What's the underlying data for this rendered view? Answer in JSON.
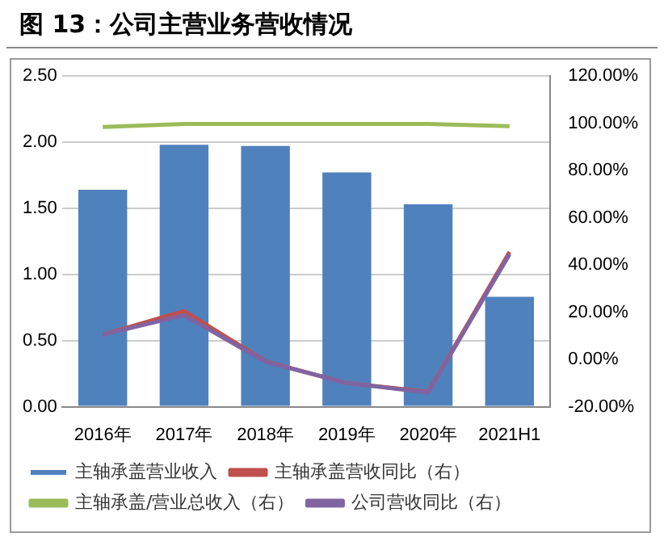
{
  "chart_data": {
    "type": "bar",
    "title": "图 13：公司主营业务营收情况",
    "categories": [
      "2016年",
      "2017年",
      "2018年",
      "2019年",
      "2020年",
      "2021H1"
    ],
    "series": [
      {
        "name": "主轴承盖营业收入",
        "color": "#4f81bd",
        "values": [
          1.64,
          1.98,
          1.97,
          1.77,
          1.53,
          0.83
        ]
      },
      {
        "name": "主轴承盖营收同比（右）",
        "type": "line",
        "axis": "y2",
        "color": "#c0504d",
        "values": [
          10.5,
          20.5,
          -0.8,
          -10,
          -13.7,
          45.5
        ]
      },
      {
        "name": "主轴承盖/营业总收入（右）",
        "type": "line",
        "axis": "y2",
        "color": "#9bbb59",
        "values": [
          98.4,
          99.7,
          99.7,
          99.7,
          99.7,
          98.7
        ]
      },
      {
        "name": "公司营收同比（右）",
        "type": "line",
        "axis": "y2",
        "color": "#8064a2",
        "values": [
          10.5,
          18.7,
          -1,
          -10,
          -14,
          44.5
        ]
      }
    ],
    "ylim": [
      0,
      2.5
    ],
    "yticks": [
      {
        "value": 0,
        "label": "0.00"
      },
      {
        "value": 0.5,
        "label": "0.50"
      },
      {
        "value": 1,
        "label": "1.00"
      },
      {
        "value": 1.5,
        "label": "1.50"
      },
      {
        "value": 2,
        "label": "2.00"
      },
      {
        "value": 2.5,
        "label": "2.50"
      }
    ],
    "y2lim": [
      -20,
      120
    ],
    "y2ticks": [
      {
        "value": -20,
        "label": "-20.00%"
      },
      {
        "value": 0,
        "label": "0.00%"
      },
      {
        "value": 20,
        "label": "20.00%"
      },
      {
        "value": 40,
        "label": "40.00%"
      },
      {
        "value": 60,
        "label": "60.00%"
      },
      {
        "value": 80,
        "label": "80.00%"
      },
      {
        "value": 100,
        "label": "100.00%"
      },
      {
        "value": 120,
        "label": "120.00%"
      }
    ],
    "grid": "y",
    "legend": "bottom",
    "marker": "none",
    "line_style": "solid"
  }
}
